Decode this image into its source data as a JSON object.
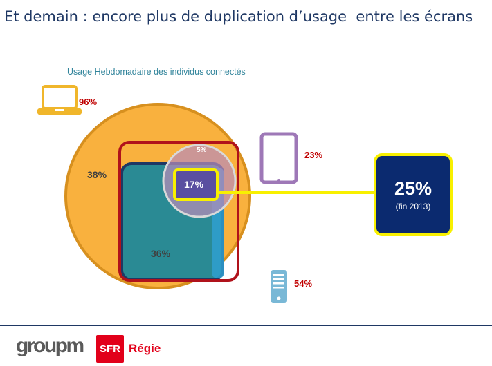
{
  "title": "Et demain : encore plus de duplication d’usage  entre les écrans",
  "subtitle": "Usage Hebdomadaire des individus connectés",
  "devices": [
    {
      "name": "laptop-icon",
      "pct": "96%",
      "color": "#f0b62b"
    },
    {
      "name": "tablet-icon",
      "pct": "23%",
      "color": "#9e78b7"
    },
    {
      "name": "smartphone-icon",
      "pct": "54%",
      "color": "#79b8d6"
    }
  ],
  "overlaps": {
    "laptop_only": "38%",
    "laptop_phone": "36%",
    "laptop_tablet": "5%",
    "all_three": "17%"
  },
  "highlight": {
    "value": "25%",
    "note": "(fin 2013)"
  },
  "colors": {
    "laptop": "#f9b13e",
    "phone": "#2a8a94",
    "tablet": "#b98cb8",
    "frame": "#b0121b",
    "highlight_border": "#f8f000",
    "highlight_fill": "#0b2a6f"
  },
  "footer": {
    "groupm": "groupm",
    "sfr": "SFR",
    "regie": "Régie"
  }
}
